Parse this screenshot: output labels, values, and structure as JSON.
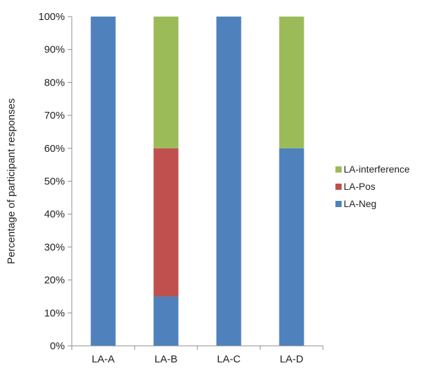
{
  "chart_data": {
    "type": "bar",
    "stacked": true,
    "categories": [
      "LA-A",
      "LA-B",
      "LA-C",
      "LA-D"
    ],
    "series": [
      {
        "name": "LA-Neg",
        "values": [
          100,
          15,
          100,
          60
        ],
        "color": "#4f81bd"
      },
      {
        "name": "LA-Pos",
        "values": [
          0,
          45,
          0,
          0
        ],
        "color": "#c0504d"
      },
      {
        "name": "LA-interference",
        "values": [
          0,
          40,
          0,
          40
        ],
        "color": "#9bbb59"
      }
    ],
    "yticks": [
      "0%",
      "10%",
      "20%",
      "30%",
      "40%",
      "50%",
      "60%",
      "70%",
      "80%",
      "90%",
      "100%"
    ],
    "ylabel": "Percentage of participant responses",
    "xlabel": "",
    "title": "",
    "ylim": [
      0,
      100
    ],
    "grid": false,
    "legend": {
      "position": "right",
      "order": [
        "LA-interference",
        "LA-Pos",
        "LA-Neg"
      ]
    }
  }
}
